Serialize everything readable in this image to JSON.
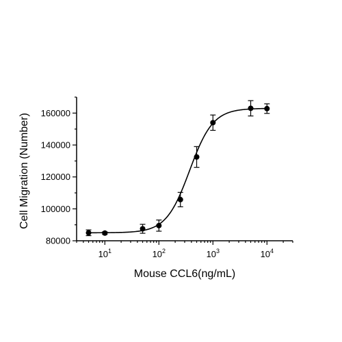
{
  "chart_data": {
    "type": "scatter",
    "title": "",
    "xlabel": "Mouse CCL6(ng/mL)",
    "ylabel": "Cell Migration (Number)",
    "x_scale": "log",
    "xlim": [
      3,
      30000
    ],
    "ylim": [
      80000,
      170000
    ],
    "x_ticks": [
      {
        "value": 10,
        "base": "10",
        "exp": "1"
      },
      {
        "value": 100,
        "base": "10",
        "exp": "2"
      },
      {
        "value": 1000,
        "base": "10",
        "exp": "3"
      },
      {
        "value": 10000,
        "base": "10",
        "exp": "4"
      }
    ],
    "y_ticks": [
      80000,
      100000,
      120000,
      140000,
      160000
    ],
    "y_tick_labels": [
      "80000",
      "100000",
      "120000",
      "140000",
      "160000"
    ],
    "grid": false,
    "legend": "none",
    "series": [
      {
        "x": [
          5,
          10,
          50,
          100,
          250,
          500,
          1000,
          5000,
          10000
        ],
        "y": [
          85000,
          84800,
          87500,
          89500,
          105800,
          132500,
          154000,
          163000,
          162800
        ],
        "error": [
          1800,
          800,
          2800,
          3500,
          4500,
          6500,
          4800,
          4800,
          3000
        ],
        "fit": {
          "model": "4PL",
          "bottom": 85000,
          "top": 163000,
          "ec50": 370,
          "hill": 2.0
        },
        "color": "#000000"
      }
    ]
  }
}
